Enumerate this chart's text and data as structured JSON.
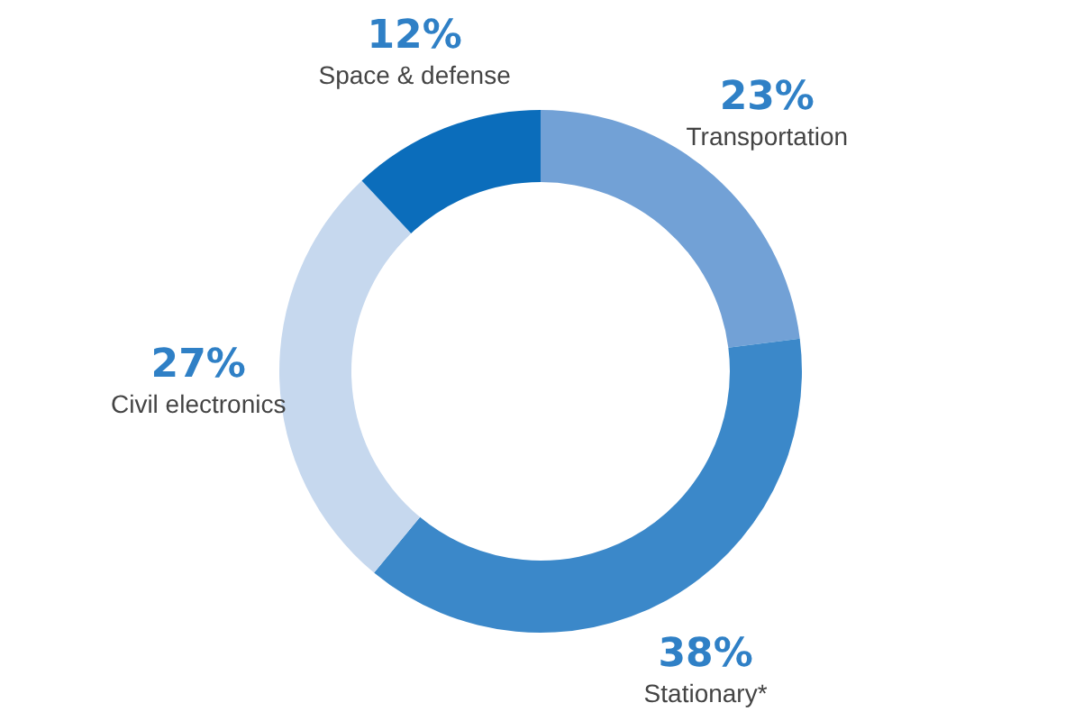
{
  "chart_data": {
    "type": "donut",
    "categories": [
      "Transportation",
      "Stationary*",
      "Civil electronics",
      "Space & defense"
    ],
    "values": [
      23,
      38,
      27,
      12
    ],
    "value_labels": [
      "23%",
      "38%",
      "27%",
      "12%"
    ],
    "colors": [
      "#72a1d6",
      "#3b88c9",
      "#c6d8ee",
      "#0b6dbb"
    ]
  }
}
